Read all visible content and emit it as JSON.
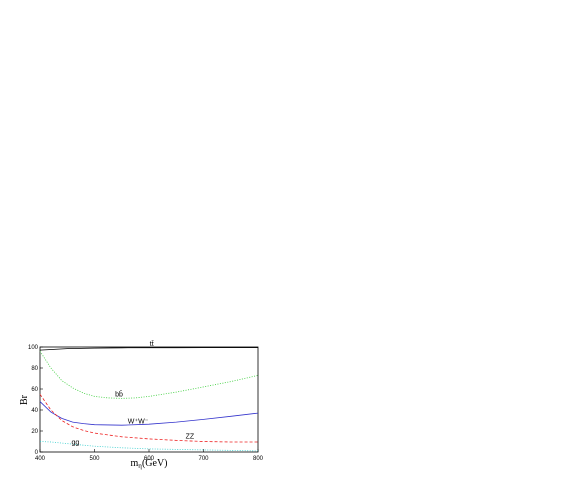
{
  "chart_data": {
    "type": "line",
    "xlabel": "m",
    "xlabel_sub": "η",
    "xlabel_rest": "(GeV)",
    "ylabel": "Br",
    "xlim": [
      400,
      800
    ],
    "ylim": [
      0,
      100
    ],
    "x_ticks": [
      400,
      500,
      600,
      700,
      800
    ],
    "y_ticks": [
      0,
      20,
      40,
      60,
      80,
      100
    ],
    "grid": false,
    "series": [
      {
        "name": "tt̄",
        "color": "#000000",
        "dash": "solid",
        "x": [
          400,
          450,
          500,
          550,
          600,
          650,
          700,
          750,
          800
        ],
        "y": [
          97,
          98.5,
          99,
          99.2,
          99.3,
          99.3,
          99.4,
          99.4,
          99.4
        ]
      },
      {
        "name": "bb̄",
        "color": "#33cc33",
        "dash": "dotted",
        "x": [
          400,
          420,
          440,
          460,
          480,
          500,
          525,
          550,
          575,
          600,
          650,
          700,
          750,
          800
        ],
        "y": [
          96,
          80,
          68,
          61,
          56,
          53,
          51.5,
          51,
          51.5,
          53,
          57,
          62,
          67,
          73
        ]
      },
      {
        "name": "W⁺W⁻",
        "color": "#3333cc",
        "dash": "solid",
        "x": [
          400,
          420,
          440,
          460,
          480,
          500,
          550,
          600,
          650,
          700,
          750,
          800
        ],
        "y": [
          48,
          38,
          32,
          28.5,
          27,
          26,
          25.5,
          26.5,
          28.5,
          31,
          34,
          37
        ]
      },
      {
        "name": "ZZ",
        "color": "#ee2222",
        "dash": "dashed",
        "x": [
          400,
          420,
          440,
          460,
          480,
          500,
          550,
          600,
          650,
          700,
          750,
          800
        ],
        "y": [
          55,
          40,
          30,
          24,
          20.5,
          18,
          14.5,
          12.5,
          11,
          10,
          9.5,
          9.5
        ]
      },
      {
        "name": "gg",
        "color": "#33cccc",
        "dash": "dotted",
        "x": [
          400,
          420,
          440,
          460,
          480,
          500,
          550,
          600,
          650,
          700,
          750,
          800
        ],
        "y": [
          10,
          9.5,
          8.5,
          7.5,
          6.5,
          5.5,
          4,
          3,
          2.5,
          2,
          1.5,
          1
        ]
      }
    ],
    "labels": [
      {
        "text": "tt̄",
        "x": 605,
        "y": 101
      },
      {
        "text": "bb̄",
        "x": 545,
        "y": 53
      },
      {
        "text": "W⁺W⁻",
        "x": 580,
        "y": 27
      },
      {
        "text": "ZZ",
        "x": 675,
        "y": 13
      },
      {
        "text": "gg",
        "x": 465,
        "y": 7
      }
    ]
  }
}
